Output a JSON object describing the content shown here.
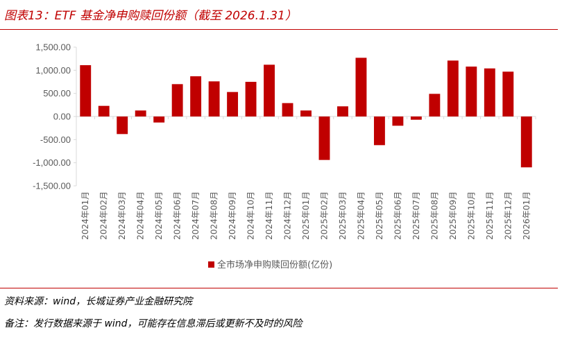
{
  "header": {
    "title": "图表13：ETF 基金净申购赎回份额（截至 2026.1.31）"
  },
  "footer": {
    "source": "资料来源：wind，长城证券产业金融研究院",
    "remark": "备注：发行数据来源于 wind，可能存在信息滞后或更新不及时的风险"
  },
  "colors": {
    "bar": "#c00000",
    "axis": "#d9d9d9",
    "text": "#595959",
    "accent": "#c00000"
  },
  "chart_data": {
    "type": "bar",
    "title": "",
    "xlabel": "",
    "ylabel": "",
    "ylim": [
      -1500,
      1500
    ],
    "y_ticks": [
      1500,
      1000,
      500,
      0,
      -500,
      -1000,
      -1500
    ],
    "y_tick_labels": [
      "1,500.00",
      "1,000.00",
      "500.00",
      "0.00",
      "-500.00",
      "-1,000.00",
      "-1,500.00"
    ],
    "grid": false,
    "legend_position": "bottom",
    "categories": [
      "2024年01月",
      "2024年02月",
      "2024年03月",
      "2024年04月",
      "2024年05月",
      "2024年06月",
      "2024年07月",
      "2024年08月",
      "2024年09月",
      "2024年10月",
      "2024年11月",
      "2024年12月",
      "2025年01月",
      "2025年02月",
      "2025年03月",
      "2025年04月",
      "2025年05月",
      "2025年06月",
      "2025年07月",
      "2025年08月",
      "2025年09月",
      "2025年10月",
      "2025年11月",
      "2025年12月",
      "2026年01月"
    ],
    "series": [
      {
        "name": "全市场净申购赎回份额(亿份)",
        "values": [
          1110,
          230,
          -380,
          130,
          -130,
          700,
          870,
          760,
          530,
          750,
          1120,
          290,
          130,
          -940,
          220,
          1270,
          -620,
          -200,
          -70,
          490,
          1210,
          1080,
          1040,
          970,
          -1100
        ]
      }
    ]
  }
}
